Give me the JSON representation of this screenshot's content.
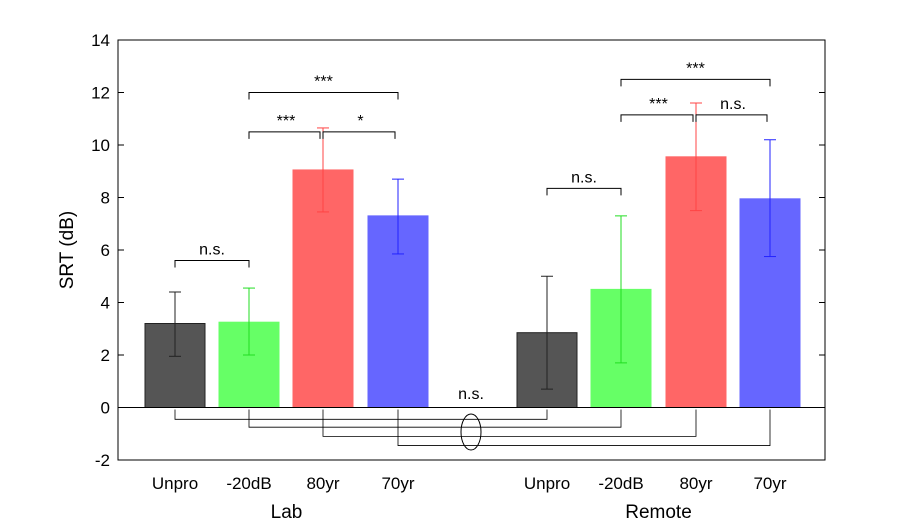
{
  "chart_data": {
    "type": "bar",
    "ylabel": "SRT (dB)",
    "ylim": [
      -2,
      14
    ],
    "yticks": [
      -2,
      0,
      2,
      4,
      6,
      8,
      10,
      12,
      14
    ],
    "grid": false,
    "groups": [
      {
        "name": "Lab",
        "bars": [
          {
            "label": "Unpro",
            "value": 3.2,
            "err_low": 1.95,
            "err_high": 4.4,
            "color": "#555555"
          },
          {
            "label": "-20dB",
            "value": 3.25,
            "err_low": 2.0,
            "err_high": 4.55,
            "color": "#66ff66"
          },
          {
            "label": "80yr",
            "value": 9.05,
            "err_low": 7.45,
            "err_high": 10.65,
            "color": "#ff6666"
          },
          {
            "label": "70yr",
            "value": 7.3,
            "err_low": 5.85,
            "err_high": 8.7,
            "color": "#6666ff"
          }
        ]
      },
      {
        "name": "Remote",
        "bars": [
          {
            "label": "Unpro",
            "value": 2.85,
            "err_low": 0.7,
            "err_high": 5.0,
            "color": "#555555"
          },
          {
            "label": "-20dB",
            "value": 4.5,
            "err_low": 1.7,
            "err_high": 7.3,
            "color": "#66ff66"
          },
          {
            "label": "80yr",
            "value": 9.55,
            "err_low": 7.5,
            "err_high": 11.6,
            "color": "#ff6666"
          },
          {
            "label": "70yr",
            "value": 7.95,
            "err_low": 5.75,
            "err_high": 10.2,
            "color": "#6666ff"
          }
        ]
      }
    ],
    "significance": [
      {
        "group": 0,
        "from": 0,
        "to": 1,
        "y": 5.6,
        "label": "n.s."
      },
      {
        "group": 0,
        "from": 1,
        "to": 2,
        "y": 10.5,
        "label": "***"
      },
      {
        "group": 0,
        "from": 2,
        "to": 3,
        "y": 10.5,
        "label": "*"
      },
      {
        "group": 0,
        "from": 1,
        "to": 3,
        "y": 12.0,
        "label": "***"
      },
      {
        "group": 1,
        "from": 0,
        "to": 1,
        "y": 8.35,
        "label": "n.s."
      },
      {
        "group": 1,
        "from": 1,
        "to": 2,
        "y": 11.15,
        "label": "***"
      },
      {
        "group": 1,
        "from": 2,
        "to": 3,
        "y": 11.15,
        "label": "n.s."
      },
      {
        "group": 1,
        "from": 1,
        "to": 3,
        "y": 12.5,
        "label": "***"
      }
    ],
    "cross_comparison": {
      "label": "n.s.",
      "pairs": [
        {
          "bar": 0,
          "y": -0.45
        },
        {
          "bar": 1,
          "y": -0.75
        },
        {
          "bar": 2,
          "y": -1.1
        },
        {
          "bar": 3,
          "y": -1.45
        }
      ]
    }
  }
}
